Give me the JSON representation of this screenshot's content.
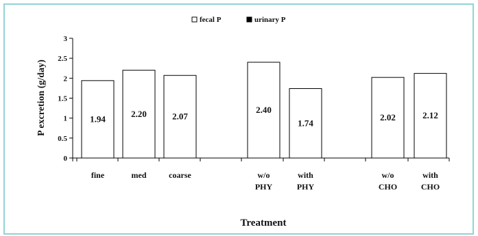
{
  "chart_data": {
    "type": "bar",
    "categories": [
      [
        "fine"
      ],
      [
        "med"
      ],
      [
        "coarse"
      ],
      [
        "w/o",
        "PHY"
      ],
      [
        "with",
        "PHY"
      ],
      [
        "w/o",
        "CHO"
      ],
      [
        "with",
        "CHO"
      ]
    ],
    "series": [
      {
        "name": "fecal P",
        "values": [
          1.94,
          2.2,
          2.07,
          2.4,
          1.74,
          2.02,
          2.12
        ],
        "color": "#ffffff"
      },
      {
        "name": "urinary P",
        "values": [
          0,
          0,
          0,
          0,
          0,
          0,
          0
        ],
        "color": "#000000"
      }
    ],
    "data_labels": [
      "1.94",
      "2.20",
      "2.07",
      "2.40",
      "1.74",
      "2.02",
      "2.12"
    ],
    "ylabel": "P excretion (g/day)",
    "xlabel": "Treatment",
    "ylim": [
      0,
      3
    ],
    "yticks": [
      "0",
      "0.5",
      "1",
      "1.5",
      "2",
      "2.5",
      "3"
    ],
    "legend_position": "top",
    "grid": false
  }
}
